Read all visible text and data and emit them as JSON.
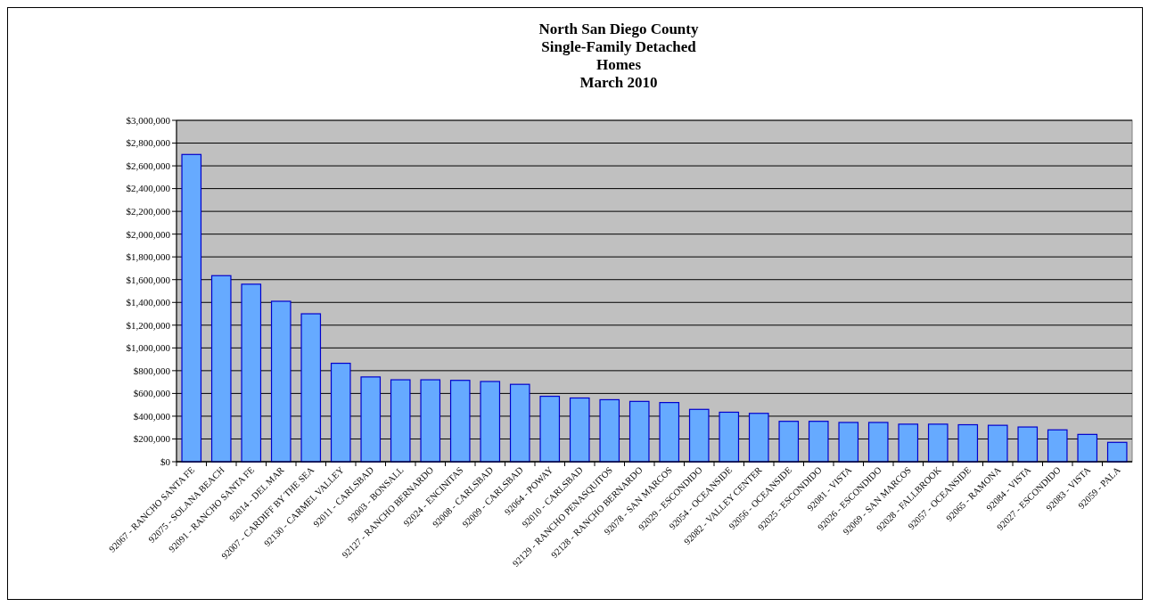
{
  "chart_data": {
    "type": "bar",
    "title": "North San Diego County\nSingle-Family Detached\nHomes\nMarch 2010",
    "categories": [
      "92067 - RANCHO SANTA FE",
      "92075 - SOLANA BEACH",
      "92091 - RANCHO SANTA FE",
      "92014 - DEL MAR",
      "92007 - CARDIFF BY THE SEA",
      "92130 - CARMEL VALLEY",
      "92011 - CARLSBAD",
      "92003 - BONSALL",
      "92127 - RANCHO BERNARDO",
      "92024 - ENCINITAS",
      "92008 - CARLSBAD",
      "92009 - CARLSBAD",
      "92064 - POWAY",
      "92010 - CARLSBAD",
      "92129 - RANCHO PENASQUITOS",
      "92128 - RANCHO BERNARDO",
      "92078 - SAN MARCOS",
      "92029 - ESCONDIDO",
      "92054 - OCEANSIDE",
      "92082 - VALLEY CENTER",
      "92056 - OCEANSIDE",
      "92025 - ESCONDIDO",
      "92081 - VISTA",
      "92026 - ESCONDIDO",
      "92069 - SAN MARCOS",
      "92028 - FALLBROOK",
      "92057 - OCEANSIDE",
      "92065 - RAMONA",
      "92084 - VISTA",
      "92027 - ESCONDIDO",
      "92083 - VISTA",
      "92059 - PALA"
    ],
    "values": [
      2700000,
      1635000,
      1560000,
      1410000,
      1300000,
      865000,
      745000,
      720000,
      720000,
      715000,
      705000,
      680000,
      575000,
      560000,
      545000,
      530000,
      520000,
      460000,
      435000,
      425000,
      355000,
      355000,
      345000,
      345000,
      330000,
      330000,
      325000,
      320000,
      305000,
      280000,
      240000,
      170000
    ],
    "color": "#66aaff",
    "ylim": [
      0,
      3000000
    ],
    "yticks": [
      {
        "value": 0,
        "label": "$0"
      },
      {
        "value": 200000,
        "label": "$200,000"
      },
      {
        "value": 400000,
        "label": "$400,000"
      },
      {
        "value": 600000,
        "label": "$600,000"
      },
      {
        "value": 800000,
        "label": "$800,000"
      },
      {
        "value": 1000000,
        "label": "$1,000,000"
      },
      {
        "value": 1200000,
        "label": "$1,200,000"
      },
      {
        "value": 1400000,
        "label": "$1,400,000"
      },
      {
        "value": 1600000,
        "label": "$1,600,000"
      },
      {
        "value": 1800000,
        "label": "$1,800,000"
      },
      {
        "value": 2000000,
        "label": "$2,000,000"
      },
      {
        "value": 2200000,
        "label": "$2,200,000"
      },
      {
        "value": 2400000,
        "label": "$2,400,000"
      },
      {
        "value": 2600000,
        "label": "$2,600,000"
      },
      {
        "value": 2800000,
        "label": "$2,800,000"
      },
      {
        "value": 3000000,
        "label": "$3,000,000"
      }
    ],
    "grid": "y"
  }
}
